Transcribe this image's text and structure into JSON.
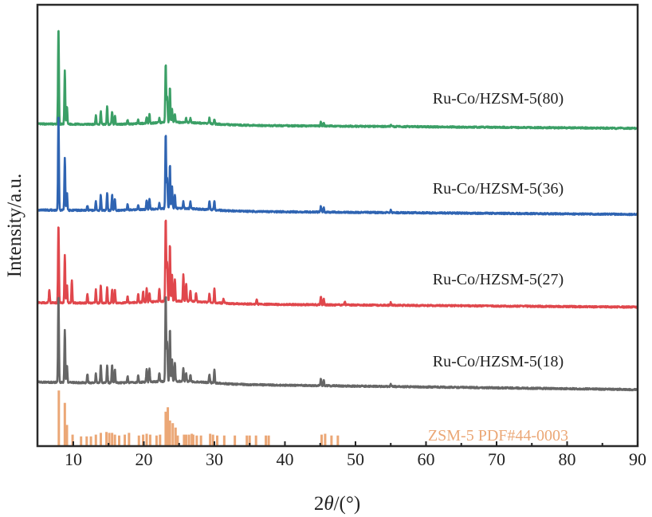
{
  "chart_data": {
    "type": "line",
    "title": "",
    "xlabel_prefix": "2",
    "xlabel_theta": "θ",
    "xlabel_suffix": "/(°)",
    "ylabel": "Intensity/a.u.",
    "xlim": [
      5,
      90
    ],
    "ylim": [
      0,
      100
    ],
    "xticks": [
      10,
      20,
      30,
      40,
      50,
      60,
      70,
      80,
      90
    ],
    "xtick_labels": [
      "10",
      "20",
      "30",
      "40",
      "50",
      "60",
      "70",
      "80",
      "90"
    ],
    "grid": false,
    "series": [
      {
        "name": "Ru-Co/HZSM-5(80)",
        "color": "#3b9f66",
        "baseline": [
          73,
          72
        ],
        "peaks": [
          [
            7.9,
            22
          ],
          [
            8.8,
            12
          ],
          [
            9.1,
            4
          ],
          [
            13.2,
            2
          ],
          [
            13.9,
            3
          ],
          [
            14.8,
            4
          ],
          [
            15.5,
            3
          ],
          [
            15.9,
            2
          ],
          [
            17.7,
            1
          ],
          [
            19.2,
            0.8
          ],
          [
            20.4,
            1.5
          ],
          [
            20.8,
            2
          ],
          [
            22.2,
            1
          ],
          [
            23.1,
            13.5
          ],
          [
            23.3,
            6
          ],
          [
            23.7,
            8
          ],
          [
            24.0,
            3
          ],
          [
            24.4,
            2
          ],
          [
            26.0,
            1
          ],
          [
            26.6,
            1
          ],
          [
            29.3,
            1.3
          ],
          [
            30.0,
            1
          ],
          [
            45.1,
            1
          ],
          [
            45.5,
            0.8
          ],
          [
            55,
            0.4
          ]
        ]
      },
      {
        "name": "Ru-Co/HZSM-5(36)",
        "color": "#2f64b2",
        "baseline": [
          53.5,
          52.5
        ],
        "peaks": [
          [
            7.9,
            22
          ],
          [
            8.8,
            12
          ],
          [
            9.1,
            4
          ],
          [
            12.0,
            1
          ],
          [
            13.2,
            2
          ],
          [
            13.9,
            3.5
          ],
          [
            14.8,
            4
          ],
          [
            15.5,
            3.5
          ],
          [
            15.9,
            2.5
          ],
          [
            17.7,
            1.3
          ],
          [
            19.2,
            1
          ],
          [
            20.4,
            2
          ],
          [
            20.8,
            2.5
          ],
          [
            22.2,
            1.2
          ],
          [
            23.1,
            17
          ],
          [
            23.3,
            7
          ],
          [
            23.7,
            10
          ],
          [
            24.0,
            5
          ],
          [
            24.4,
            3
          ],
          [
            25.6,
            1.5
          ],
          [
            26.6,
            1.5
          ],
          [
            29.3,
            2
          ],
          [
            30.0,
            2
          ],
          [
            45.1,
            1.3
          ],
          [
            45.5,
            1
          ],
          [
            55,
            0.5
          ]
        ]
      },
      {
        "name": "Ru-Co/HZSM-5(27)",
        "color": "#e0474c",
        "baseline": [
          32.5,
          31.5
        ],
        "peaks": [
          [
            6.6,
            3
          ],
          [
            7.9,
            18
          ],
          [
            8.8,
            11
          ],
          [
            9.1,
            4
          ],
          [
            9.8,
            5
          ],
          [
            12.0,
            2
          ],
          [
            13.2,
            3
          ],
          [
            13.9,
            4
          ],
          [
            14.8,
            3.5
          ],
          [
            15.5,
            3
          ],
          [
            15.9,
            3
          ],
          [
            17.7,
            1.5
          ],
          [
            19.2,
            2
          ],
          [
            19.9,
            2.5
          ],
          [
            20.4,
            3
          ],
          [
            20.8,
            2
          ],
          [
            22.2,
            3
          ],
          [
            23.1,
            19
          ],
          [
            23.3,
            9
          ],
          [
            23.7,
            13
          ],
          [
            24.0,
            6
          ],
          [
            24.4,
            5
          ],
          [
            25.6,
            6
          ],
          [
            26.0,
            4
          ],
          [
            26.6,
            2.5
          ],
          [
            27.4,
            2
          ],
          [
            29.3,
            2
          ],
          [
            30.0,
            3.2
          ],
          [
            31.3,
            1
          ],
          [
            36,
            1
          ],
          [
            45.1,
            2
          ],
          [
            45.5,
            1.5
          ],
          [
            48.5,
            0.7
          ],
          [
            55,
            0.6
          ]
        ]
      },
      {
        "name": "Ru-Co/HZSM-5(18)",
        "color": "#666666",
        "baseline": [
          14.5,
          12.8
        ],
        "peaks": [
          [
            7.9,
            20
          ],
          [
            8.8,
            12
          ],
          [
            9.1,
            4
          ],
          [
            12.0,
            2
          ],
          [
            13.2,
            2
          ],
          [
            13.9,
            4
          ],
          [
            14.8,
            4
          ],
          [
            15.5,
            4
          ],
          [
            15.9,
            3
          ],
          [
            17.7,
            1.5
          ],
          [
            19.2,
            1.5
          ],
          [
            20.4,
            3
          ],
          [
            20.8,
            3
          ],
          [
            22.2,
            2
          ],
          [
            23.1,
            20
          ],
          [
            23.3,
            9
          ],
          [
            23.7,
            12
          ],
          [
            24.0,
            5
          ],
          [
            24.4,
            4
          ],
          [
            25.6,
            3
          ],
          [
            26.0,
            2
          ],
          [
            26.6,
            1.5
          ],
          [
            29.3,
            2
          ],
          [
            30.0,
            3
          ],
          [
            45.1,
            1.7
          ],
          [
            45.5,
            1.2
          ],
          [
            55,
            0.5
          ]
        ]
      }
    ],
    "reference": {
      "name": "ZSM-5 PDF#44-0003",
      "color": "#eba776",
      "bars": [
        [
          7.95,
          12.6
        ],
        [
          8.8,
          9.8
        ],
        [
          9.1,
          4.8
        ],
        [
          9.9,
          2.6
        ],
        [
          11.1,
          2.2
        ],
        [
          11.9,
          2.2
        ],
        [
          12.5,
          2.2
        ],
        [
          13.2,
          2.6
        ],
        [
          13.9,
          3
        ],
        [
          14.7,
          3.2
        ],
        [
          15.1,
          3
        ],
        [
          15.5,
          3
        ],
        [
          15.9,
          2.6
        ],
        [
          16.5,
          2.4
        ],
        [
          17.3,
          2.6
        ],
        [
          17.9,
          3
        ],
        [
          19.3,
          2.4
        ],
        [
          19.9,
          2.6
        ],
        [
          20.4,
          2.8
        ],
        [
          20.9,
          2.6
        ],
        [
          21.8,
          2.4
        ],
        [
          22.3,
          2.6
        ],
        [
          23.1,
          7.8
        ],
        [
          23.4,
          8.8
        ],
        [
          23.7,
          5.8
        ],
        [
          24.1,
          5.2
        ],
        [
          24.5,
          4.2
        ],
        [
          24.8,
          2.4
        ],
        [
          25.7,
          2.6
        ],
        [
          26.0,
          2.6
        ],
        [
          26.4,
          2.6
        ],
        [
          26.8,
          2.8
        ],
        [
          27.0,
          2.6
        ],
        [
          27.5,
          2.4
        ],
        [
          28.1,
          2.4
        ],
        [
          29.4,
          2.8
        ],
        [
          29.8,
          2.6
        ],
        [
          30.4,
          2.4
        ],
        [
          31.4,
          2.4
        ],
        [
          32.9,
          2.4
        ],
        [
          34.6,
          2.4
        ],
        [
          35.0,
          2.4
        ],
        [
          35.9,
          2.4
        ],
        [
          37.3,
          2.4
        ],
        [
          37.7,
          2.4
        ],
        [
          45.2,
          2.6
        ],
        [
          45.7,
          2.8
        ],
        [
          46.6,
          2.4
        ],
        [
          47.5,
          2.4
        ]
      ]
    }
  }
}
